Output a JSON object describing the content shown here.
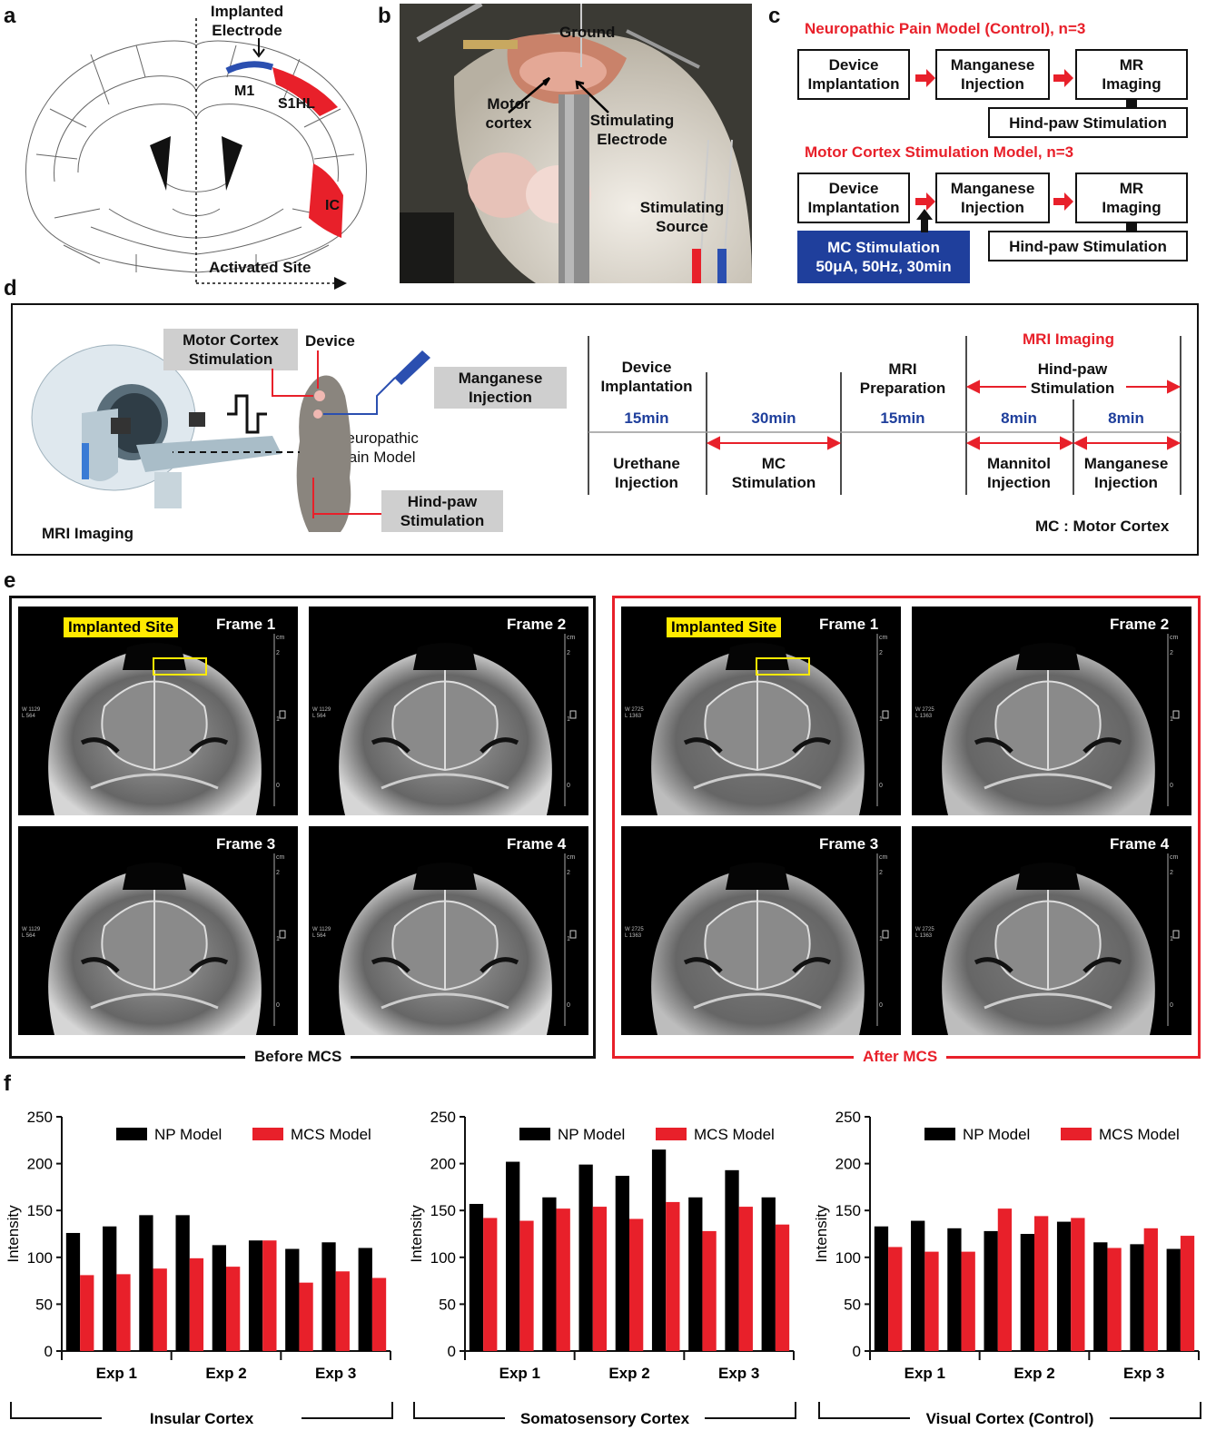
{
  "panel_labels": {
    "a": "a",
    "b": "b",
    "c": "c",
    "d": "d",
    "e": "e",
    "f": "f"
  },
  "panel_a": {
    "implanted_electrode": "Implanted\nElectrode",
    "m1": "M1",
    "s1hl": "S1HL",
    "ic": "IC",
    "activated_site": "Activated Site",
    "colors": {
      "electrode": "#2b4fb0",
      "activated": "#e8202a"
    }
  },
  "panel_b": {
    "ground": "Ground",
    "motor_cortex": "Motor\ncortex",
    "stimulating_electrode": "Stimulating\nElectrode",
    "stimulating_source": "Stimulating\nSource"
  },
  "panel_c": {
    "control_title": "Neuropathic Pain Model  (Control), n=3",
    "mcs_title": "Motor Cortex Stimulation Model, n=3",
    "device_implantation": "Device\nImplantation",
    "manganese_injection": "Manganese\nInjection",
    "mr_imaging": "MR\nImaging",
    "hindpaw_stimulation": "Hind-paw Stimulation",
    "mc_stimulation": "MC Stimulation\n50μA, 50Hz, 30min",
    "colors": {
      "accent": "#e8202a",
      "mc_box": "#1f3f9c"
    }
  },
  "panel_d": {
    "motor_cortex_stimulation": "Motor Cortex\nStimulation",
    "device": "Device",
    "manganese_injection": "Manganese\nInjection",
    "neuropathic_pain_model": "Neuropathic\nPain Model",
    "hindpaw_stimulation": "Hind-paw\nStimulation",
    "mri_imaging": "MRI Imaging",
    "timeline": {
      "mri_imaging_header": "MRI Imaging",
      "hindpaw_stimulation": "Hind-paw\nStimulation",
      "top": [
        "Device\nImplantation",
        "",
        "MRI\nPreparation"
      ],
      "durations": [
        "15min",
        "30min",
        "15min",
        "8min",
        "8min"
      ],
      "bottom": [
        "Urethane\nInjection",
        "MC\nStimulation",
        "",
        "Mannitol\nInjection",
        "Manganese\nInjection"
      ],
      "footnote": "MC : Motor Cortex"
    }
  },
  "panel_e": {
    "before": {
      "caption": "Before MCS",
      "frames": [
        "Frame 1",
        "Frame 2",
        "Frame 3",
        "Frame 4"
      ],
      "implanted_site": "Implanted Site",
      "wl": "W 1129\nL 564"
    },
    "after": {
      "caption": "After MCS",
      "frames": [
        "Frame 1",
        "Frame 2",
        "Frame 3",
        "Frame 4"
      ],
      "implanted_site": "Implanted Site",
      "wl": "W 2725\nL 1363"
    },
    "scale_unit": "cm",
    "scale_ticks": [
      "2",
      "1",
      "0"
    ],
    "colors": {
      "after_border": "#e8202a",
      "highlight": "#ffea00"
    }
  },
  "chart_data": [
    {
      "type": "bar",
      "region_label": "Insular Cortex",
      "ylabel": "Intensity",
      "ylim": [
        0,
        250
      ],
      "yticks": [
        "0",
        "50",
        "100",
        "150",
        "200",
        "250"
      ],
      "groups": [
        "Exp 1",
        "Exp 2",
        "Exp 3"
      ],
      "pairs_per_group": 3,
      "series": [
        {
          "name": "NP Model",
          "color": "#000000",
          "values": [
            126,
            133,
            145,
            145,
            113,
            118,
            109,
            116,
            110
          ]
        },
        {
          "name": "MCS Model",
          "color": "#e8202a",
          "values": [
            81,
            82,
            88,
            99,
            90,
            118,
            73,
            85,
            78
          ]
        }
      ],
      "legend": "top"
    },
    {
      "type": "bar",
      "region_label": "Somatosensory Cortex",
      "ylabel": "Intensity",
      "ylim": [
        0,
        250
      ],
      "yticks": [
        "0",
        "50",
        "100",
        "150",
        "200",
        "250"
      ],
      "groups": [
        "Exp 1",
        "Exp 2",
        "Exp 3"
      ],
      "pairs_per_group": 3,
      "series": [
        {
          "name": "NP Model",
          "color": "#000000",
          "values": [
            157,
            202,
            164,
            199,
            187,
            215,
            164,
            193,
            164
          ]
        },
        {
          "name": "MCS Model",
          "color": "#e8202a",
          "values": [
            142,
            139,
            152,
            154,
            141,
            159,
            128,
            154,
            135
          ]
        }
      ],
      "legend": "top"
    },
    {
      "type": "bar",
      "region_label": "Visual Cortex (Control)",
      "ylabel": "Intensity",
      "ylim": [
        0,
        250
      ],
      "yticks": [
        "0",
        "50",
        "100",
        "150",
        "200",
        "250"
      ],
      "groups": [
        "Exp 1",
        "Exp 2",
        "Exp 3"
      ],
      "pairs_per_group": 3,
      "series": [
        {
          "name": "NP Model",
          "color": "#000000",
          "values": [
            133,
            139,
            131,
            128,
            125,
            138,
            116,
            114,
            109
          ]
        },
        {
          "name": "MCS Model",
          "color": "#e8202a",
          "values": [
            111,
            106,
            106,
            152,
            144,
            142,
            110,
            131,
            123
          ]
        }
      ],
      "legend": "top"
    }
  ]
}
